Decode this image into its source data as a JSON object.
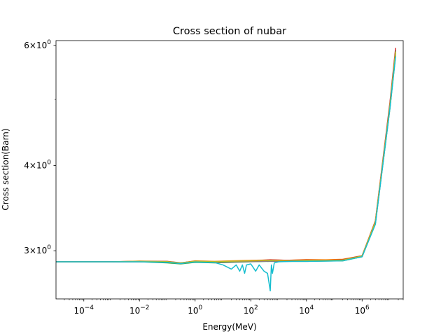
{
  "chart_data": {
    "type": "line",
    "title": "Cross section of nubar",
    "xlabel": "Energy(MeV)",
    "ylabel": "Cross section(Barn)",
    "xscale": "log",
    "yscale": "log",
    "xlim": [
      1e-05,
      30000000.0
    ],
    "ylim": [
      2.55,
      6.1
    ],
    "grid": false,
    "x_ticks": [
      {
        "value": 0.0001,
        "base": "10",
        "exp": "−4"
      },
      {
        "value": 0.01,
        "base": "10",
        "exp": "−2"
      },
      {
        "value": 1,
        "base": "10",
        "exp": "0"
      },
      {
        "value": 100,
        "base": "10",
        "exp": "2"
      },
      {
        "value": 10000,
        "base": "10",
        "exp": "4"
      },
      {
        "value": 1000000,
        "base": "10",
        "exp": "6"
      }
    ],
    "y_ticks": [
      {
        "value": 3,
        "mantissa": "3",
        "base": "10",
        "exp": "0"
      },
      {
        "value": 4,
        "mantissa": "4",
        "base": "10",
        "exp": "0"
      },
      {
        "value": 6,
        "mantissa": "6",
        "base": "10",
        "exp": "0"
      }
    ],
    "y_minor_ticks": [
      5
    ],
    "colors": [
      "#1f77b4",
      "#ff7f0e",
      "#2ca02c",
      "#d62728",
      "#9467bd",
      "#8c564b",
      "#e377c2",
      "#7f7f7f",
      "#bcbd22",
      "#17becf"
    ],
    "series": [
      {
        "values": [
          [
            1e-05,
            2.89
          ],
          [
            0.001,
            2.89
          ],
          [
            0.01,
            2.893
          ],
          [
            0.1,
            2.885
          ],
          [
            0.3,
            2.875
          ],
          [
            1,
            2.893
          ],
          [
            5,
            2.885
          ],
          [
            20,
            2.89
          ],
          [
            100,
            2.895
          ],
          [
            500,
            2.9
          ],
          [
            2000,
            2.9
          ],
          [
            10000,
            2.9
          ],
          [
            50000,
            2.9
          ],
          [
            200000,
            2.905
          ],
          [
            1000000,
            2.945
          ],
          [
            3000000,
            3.3
          ],
          [
            10000000,
            4.9
          ],
          [
            16000000,
            5.9
          ]
        ]
      },
      {
        "values": [
          [
            1e-05,
            2.89
          ],
          [
            0.001,
            2.89
          ],
          [
            0.01,
            2.895
          ],
          [
            0.1,
            2.893
          ],
          [
            0.3,
            2.878
          ],
          [
            1,
            2.9
          ],
          [
            5,
            2.895
          ],
          [
            20,
            2.9
          ],
          [
            100,
            2.905
          ],
          [
            500,
            2.908
          ],
          [
            2000,
            2.905
          ],
          [
            10000,
            2.912
          ],
          [
            50000,
            2.91
          ],
          [
            200000,
            2.915
          ],
          [
            1000000,
            2.95
          ],
          [
            3000000,
            3.31
          ],
          [
            10000000,
            4.88
          ],
          [
            16000000,
            5.85
          ]
        ]
      },
      {
        "values": [
          [
            1e-05,
            2.89
          ],
          [
            0.001,
            2.89
          ],
          [
            0.01,
            2.89
          ],
          [
            0.1,
            2.88
          ],
          [
            0.3,
            2.87
          ],
          [
            1,
            2.885
          ],
          [
            5,
            2.88
          ],
          [
            20,
            2.885
          ],
          [
            100,
            2.89
          ],
          [
            500,
            2.895
          ],
          [
            2000,
            2.895
          ],
          [
            10000,
            2.895
          ],
          [
            50000,
            2.898
          ],
          [
            200000,
            2.9
          ],
          [
            1000000,
            2.94
          ],
          [
            3000000,
            3.29
          ],
          [
            10000000,
            4.85
          ],
          [
            16000000,
            5.8
          ]
        ]
      },
      {
        "values": [
          [
            1e-05,
            2.89
          ],
          [
            0.001,
            2.89
          ],
          [
            0.01,
            2.897
          ],
          [
            0.1,
            2.895
          ],
          [
            0.3,
            2.88
          ],
          [
            1,
            2.897
          ],
          [
            5,
            2.89
          ],
          [
            20,
            2.895
          ],
          [
            100,
            2.9
          ],
          [
            500,
            2.91
          ],
          [
            2000,
            2.905
          ],
          [
            10000,
            2.908
          ],
          [
            50000,
            2.905
          ],
          [
            200000,
            2.91
          ],
          [
            1000000,
            2.95
          ],
          [
            3000000,
            3.32
          ],
          [
            10000000,
            4.95
          ],
          [
            16000000,
            5.95
          ]
        ]
      },
      {
        "values": [
          [
            1e-05,
            2.89
          ],
          [
            0.001,
            2.89
          ],
          [
            0.01,
            2.892
          ],
          [
            0.1,
            2.888
          ],
          [
            0.3,
            2.876
          ],
          [
            1,
            2.892
          ],
          [
            5,
            2.887
          ],
          [
            20,
            2.89
          ],
          [
            100,
            2.893
          ],
          [
            500,
            2.9
          ],
          [
            2000,
            2.898
          ],
          [
            10000,
            2.9
          ],
          [
            50000,
            2.902
          ],
          [
            200000,
            2.905
          ],
          [
            1000000,
            2.945
          ],
          [
            3000000,
            3.3
          ],
          [
            10000000,
            4.9
          ],
          [
            16000000,
            5.88
          ]
        ]
      },
      {
        "values": [
          [
            1e-05,
            2.89
          ],
          [
            0.001,
            2.89
          ],
          [
            0.01,
            2.894
          ],
          [
            0.1,
            2.89
          ],
          [
            0.3,
            2.877
          ],
          [
            1,
            2.895
          ],
          [
            5,
            2.89
          ],
          [
            20,
            2.892
          ],
          [
            100,
            2.897
          ],
          [
            500,
            2.903
          ],
          [
            2000,
            2.9
          ],
          [
            10000,
            2.905
          ],
          [
            50000,
            2.902
          ],
          [
            200000,
            2.908
          ],
          [
            1000000,
            2.948
          ],
          [
            3000000,
            3.3
          ],
          [
            10000000,
            4.92
          ],
          [
            16000000,
            5.9
          ]
        ]
      },
      {
        "values": [
          [
            1e-05,
            2.89
          ],
          [
            0.001,
            2.89
          ],
          [
            0.01,
            2.893
          ],
          [
            0.1,
            2.887
          ],
          [
            0.3,
            2.874
          ],
          [
            1,
            2.89
          ],
          [
            5,
            2.886
          ],
          [
            20,
            2.89
          ],
          [
            100,
            2.892
          ],
          [
            500,
            2.898
          ],
          [
            2000,
            2.896
          ],
          [
            10000,
            2.898
          ],
          [
            50000,
            2.9
          ],
          [
            200000,
            2.903
          ],
          [
            1000000,
            2.943
          ],
          [
            3000000,
            3.29
          ],
          [
            10000000,
            4.88
          ],
          [
            16000000,
            5.86
          ]
        ]
      },
      {
        "values": [
          [
            1e-05,
            2.89
          ],
          [
            0.001,
            2.89
          ],
          [
            0.01,
            2.891
          ],
          [
            0.1,
            2.886
          ],
          [
            0.3,
            2.875
          ],
          [
            1,
            2.891
          ],
          [
            5,
            2.885
          ],
          [
            20,
            2.889
          ],
          [
            100,
            2.894
          ],
          [
            500,
            2.899
          ],
          [
            2000,
            2.898
          ],
          [
            10000,
            2.899
          ],
          [
            50000,
            2.9
          ],
          [
            200000,
            2.904
          ],
          [
            1000000,
            2.944
          ],
          [
            3000000,
            3.29
          ],
          [
            10000000,
            4.87
          ],
          [
            16000000,
            5.84
          ]
        ]
      },
      {
        "values": [
          [
            1e-05,
            2.89
          ],
          [
            0.001,
            2.89
          ],
          [
            0.01,
            2.896
          ],
          [
            0.1,
            2.892
          ],
          [
            0.3,
            2.879
          ],
          [
            1,
            2.896
          ],
          [
            5,
            2.892
          ],
          [
            20,
            2.896
          ],
          [
            100,
            2.9
          ],
          [
            500,
            2.905
          ],
          [
            2000,
            2.9
          ],
          [
            10000,
            2.905
          ],
          [
            50000,
            2.904
          ],
          [
            200000,
            2.907
          ],
          [
            1000000,
            2.947
          ],
          [
            3000000,
            3.31
          ],
          [
            10000000,
            4.9
          ],
          [
            16000000,
            5.88
          ]
        ]
      },
      {
        "values": [
          [
            1e-05,
            2.89
          ],
          [
            0.001,
            2.89
          ],
          [
            0.01,
            2.89
          ],
          [
            0.1,
            2.885
          ],
          [
            0.3,
            2.873
          ],
          [
            1,
            2.889
          ],
          [
            5,
            2.883
          ],
          [
            10,
            2.86
          ],
          [
            20,
            2.82
          ],
          [
            30,
            2.86
          ],
          [
            40,
            2.8
          ],
          [
            50,
            2.86
          ],
          [
            60,
            2.78
          ],
          [
            70,
            2.86
          ],
          [
            100,
            2.87
          ],
          [
            150,
            2.8
          ],
          [
            200,
            2.86
          ],
          [
            300,
            2.8
          ],
          [
            400,
            2.78
          ],
          [
            500,
            2.62
          ],
          [
            550,
            2.86
          ],
          [
            600,
            2.78
          ],
          [
            700,
            2.88
          ],
          [
            1000,
            2.89
          ],
          [
            3000,
            2.895
          ],
          [
            10000,
            2.895
          ],
          [
            50000,
            2.897
          ],
          [
            200000,
            2.9
          ],
          [
            1000000,
            2.94
          ],
          [
            3000000,
            3.28
          ],
          [
            10000000,
            4.85
          ],
          [
            16000000,
            5.78
          ]
        ]
      }
    ]
  }
}
